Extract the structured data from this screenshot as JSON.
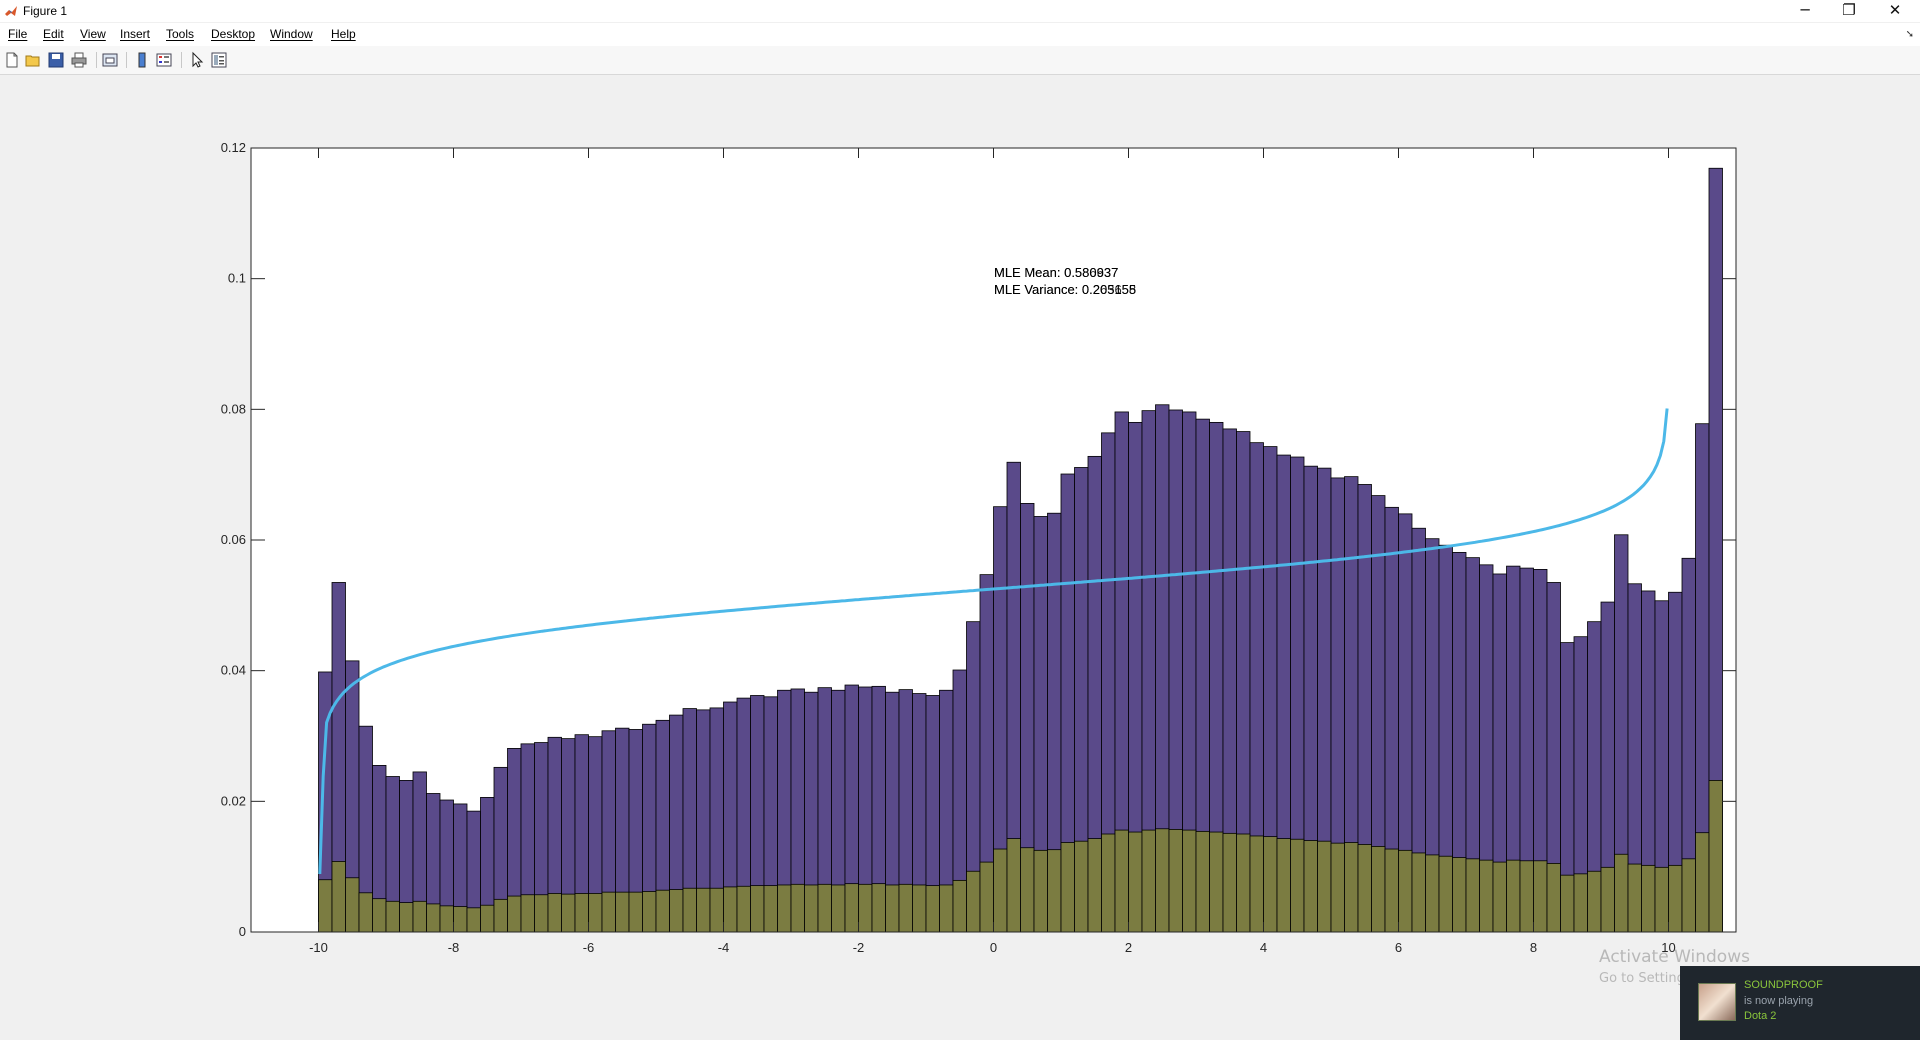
{
  "window": {
    "title": "Figure 1",
    "controls": {
      "minimize": "─",
      "maximize": "❐",
      "close": "✕"
    }
  },
  "menu": {
    "items": [
      "File",
      "Edit",
      "View",
      "Insert",
      "Tools",
      "Desktop",
      "Window",
      "Help"
    ]
  },
  "toolbar": {
    "icons": [
      "new-figure-icon",
      "open-file-icon",
      "save-icon",
      "print-icon",
      "link-plot-icon",
      "colorbar-icon",
      "legend-icon",
      "select-pointer-icon",
      "property-inspector-icon"
    ]
  },
  "annotation": {
    "mean_a": "MLE Mean: 0.580937",
    "mean_b": "MLE Mean: 0.586637",
    "variance_a": "MLE Variance: 0.205155",
    "variance_b": "MLE Variance: 0.263658"
  },
  "chart_data": {
    "type": "bar",
    "xlim": [
      -11,
      11
    ],
    "ylim": [
      0,
      0.12
    ],
    "xticks": [
      "-10",
      "-8",
      "-6",
      "-4",
      "-2",
      "0",
      "2",
      "4",
      "6",
      "8",
      "10"
    ],
    "yticks": [
      "0",
      "0.02",
      "0.04",
      "0.06",
      "0.08",
      "0.1",
      "0.12"
    ],
    "bin_start": -10,
    "bin_width": 0.2,
    "colors": {
      "series1": "#5a4a8a",
      "series2": "#7b7c41",
      "curve": "#4cb8e8"
    },
    "series": [
      {
        "values": [
          0.0398,
          0.0535,
          0.0415,
          0.0315,
          0.0255,
          0.0238,
          0.0232,
          0.0245,
          0.0212,
          0.0202,
          0.0196,
          0.0185,
          0.0206,
          0.0252,
          0.0281,
          0.0288,
          0.029,
          0.0298,
          0.0296,
          0.0302,
          0.0299,
          0.0308,
          0.0312,
          0.031,
          0.0318,
          0.0324,
          0.0332,
          0.0342,
          0.034,
          0.0343,
          0.0352,
          0.0358,
          0.0362,
          0.036,
          0.037,
          0.0372,
          0.0367,
          0.0374,
          0.037,
          0.0378,
          0.0375,
          0.0376,
          0.0367,
          0.0371,
          0.0365,
          0.0362,
          0.037,
          0.0401,
          0.0475,
          0.0547,
          0.0651,
          0.0719,
          0.0656,
          0.0636,
          0.0641,
          0.0701,
          0.0711,
          0.0728,
          0.0764,
          0.0796,
          0.078,
          0.0798,
          0.0807,
          0.0799,
          0.0796,
          0.0785,
          0.078,
          0.077,
          0.0766,
          0.0749,
          0.0743,
          0.073,
          0.0727,
          0.0713,
          0.071,
          0.0695,
          0.0697,
          0.0685,
          0.0668,
          0.065,
          0.064,
          0.0618,
          0.0602,
          0.0592,
          0.0581,
          0.0573,
          0.0562,
          0.0548,
          0.056,
          0.0557,
          0.0555,
          0.0535,
          0.0443,
          0.0452,
          0.0475,
          0.0505,
          0.0608,
          0.0533,
          0.0522,
          0.0507,
          0.052,
          0.0572,
          0.0778,
          0.1169
        ]
      },
      {
        "values": [
          0.008,
          0.0108,
          0.0083,
          0.006,
          0.0051,
          0.0047,
          0.0045,
          0.0047,
          0.0043,
          0.004,
          0.0039,
          0.0037,
          0.0041,
          0.005,
          0.0055,
          0.0057,
          0.0057,
          0.0059,
          0.0058,
          0.0059,
          0.0059,
          0.0061,
          0.0061,
          0.0061,
          0.0062,
          0.0064,
          0.0065,
          0.0067,
          0.0067,
          0.0067,
          0.0069,
          0.007,
          0.0071,
          0.0071,
          0.0072,
          0.0073,
          0.0072,
          0.0073,
          0.0072,
          0.0074,
          0.0073,
          0.0074,
          0.0072,
          0.0073,
          0.0072,
          0.0071,
          0.0072,
          0.0079,
          0.0093,
          0.0107,
          0.0127,
          0.0143,
          0.0129,
          0.0125,
          0.0126,
          0.0137,
          0.0139,
          0.0143,
          0.015,
          0.0156,
          0.0153,
          0.0156,
          0.0158,
          0.0157,
          0.0156,
          0.0154,
          0.0153,
          0.0151,
          0.015,
          0.0147,
          0.0146,
          0.0143,
          0.0142,
          0.014,
          0.0139,
          0.0136,
          0.0137,
          0.0134,
          0.0131,
          0.0127,
          0.0125,
          0.0121,
          0.0118,
          0.0116,
          0.0114,
          0.0112,
          0.011,
          0.0107,
          0.011,
          0.0109,
          0.0109,
          0.0105,
          0.0087,
          0.0089,
          0.0093,
          0.0099,
          0.0119,
          0.0104,
          0.0102,
          0.0099,
          0.0102,
          0.0112,
          0.0152,
          0.0232
        ]
      }
    ]
  },
  "watermark": {
    "line1": "Activate Windows",
    "line2": "Go to Settings to activate Windows."
  },
  "toast": {
    "title": "SOUNDPROOF",
    "status": "is now playing",
    "game": "Dota 2"
  }
}
